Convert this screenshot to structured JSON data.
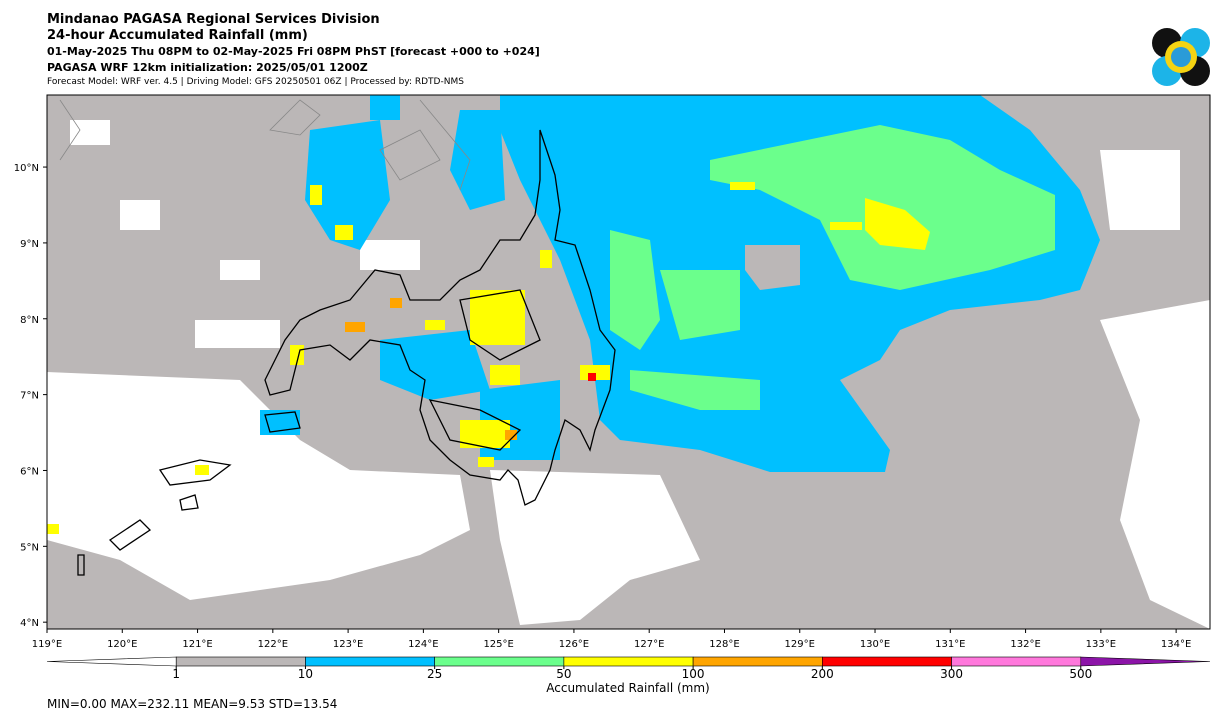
{
  "header": {
    "title": "Mindanao PAGASA Regional Services Division",
    "subtitle": "24-hour Accumulated Rainfall (mm)",
    "period": "01-May-2025 Thu 08PM to 02-May-2025 Fri 08PM PhST [forecast +000 to +024]",
    "model": "PAGASA WRF 12km initialization: 2025/05/01 1200Z",
    "credits": "Forecast Model: WRF ver. 4.5 | Driving Model: GFS 20250501 06Z | Processed by: RDTD-NMS"
  },
  "map": {
    "xlim": [
      119,
      134.45
    ],
    "ylim": [
      3.91,
      10.95
    ],
    "xticks": [
      {
        "value": 119,
        "label": "119°E"
      },
      {
        "value": 120,
        "label": "120°E"
      },
      {
        "value": 121,
        "label": "121°E"
      },
      {
        "value": 122,
        "label": "122°E"
      },
      {
        "value": 123,
        "label": "123°E"
      },
      {
        "value": 124,
        "label": "124°E"
      },
      {
        "value": 125,
        "label": "125°E"
      },
      {
        "value": 126,
        "label": "126°E"
      },
      {
        "value": 127,
        "label": "127°E"
      },
      {
        "value": 128,
        "label": "128°E"
      },
      {
        "value": 129,
        "label": "129°E"
      },
      {
        "value": 130,
        "label": "130°E"
      },
      {
        "value": 131,
        "label": "131°E"
      },
      {
        "value": 132,
        "label": "132°E"
      },
      {
        "value": 133,
        "label": "133°E"
      },
      {
        "value": 134,
        "label": "134°E"
      }
    ],
    "yticks": [
      {
        "value": 4,
        "label": "4°N"
      },
      {
        "value": 5,
        "label": "5°N"
      },
      {
        "value": 6,
        "label": "6°N"
      },
      {
        "value": 7,
        "label": "7°N"
      },
      {
        "value": 8,
        "label": "8°N"
      },
      {
        "value": 9,
        "label": "9°N"
      },
      {
        "value": 10,
        "label": "10°N"
      }
    ]
  },
  "colorbar": {
    "label": "Accumulated Rainfall (mm)",
    "levels": [
      1,
      10,
      25,
      50,
      100,
      200,
      300,
      500
    ],
    "colors": [
      "#ffffff",
      "#bbb7b7",
      "#00c0ff",
      "#6bff8c",
      "#ffff00",
      "#ffa500",
      "#ff0000",
      "#ff78dc",
      "#8c14a8"
    ]
  },
  "stats": "MIN=0.00   MAX=232.11   MEAN=9.53   STD=13.54"
}
